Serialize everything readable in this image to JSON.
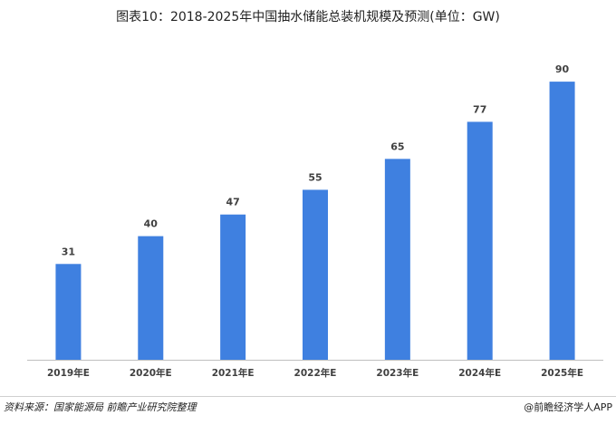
{
  "chart_data": {
    "type": "bar",
    "title": "图表10：2018-2025年中国抽水储能总装机规模及预测(单位：GW)",
    "categories": [
      "2019年E",
      "2020年E",
      "2021年E",
      "2022年E",
      "2023年E",
      "2024年E",
      "2025年E"
    ],
    "values": [
      31,
      40,
      47,
      55,
      65,
      77,
      90
    ],
    "color": "#3f80e0",
    "ylim": [
      0,
      100
    ],
    "grid": false
  },
  "footer": {
    "source": "资料来源：国家能源局 前瞻产业研究院整理",
    "credit": "@前瞻经济学人APP"
  }
}
